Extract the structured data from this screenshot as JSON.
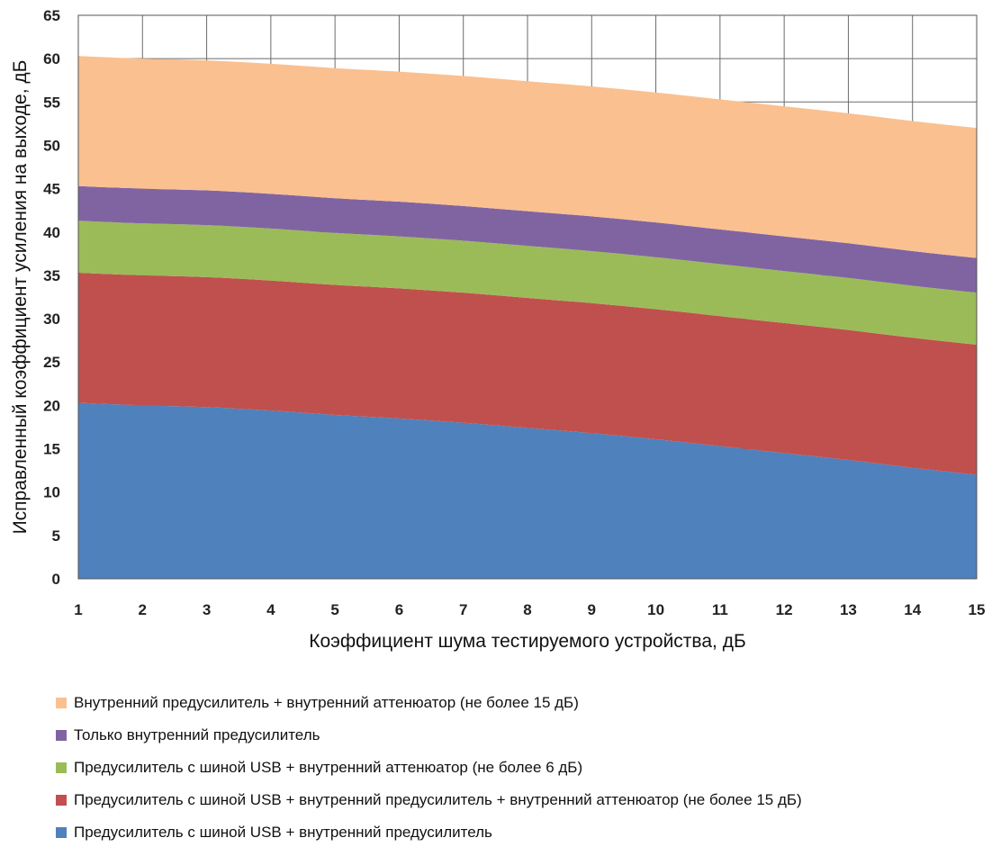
{
  "chart_data": {
    "type": "area",
    "stacked": true,
    "x": [
      1,
      2,
      3,
      4,
      5,
      6,
      7,
      8,
      9,
      10,
      11,
      12,
      13,
      14,
      15
    ],
    "xlabel": "Коэффициент шума тестируемого устройства, дБ",
    "ylabel": "Исправленный коэффициент усиления на выходе, дБ",
    "xlim": [
      1,
      15
    ],
    "ylim": [
      0,
      65
    ],
    "x_ticks": [
      "1",
      "2",
      "3",
      "4",
      "5",
      "6",
      "7",
      "8",
      "9",
      "10",
      "11",
      "12",
      "13",
      "14",
      "15"
    ],
    "y_ticks": [
      "0",
      "5",
      "10",
      "15",
      "20",
      "25",
      "30",
      "35",
      "40",
      "45",
      "50",
      "55",
      "60",
      "65"
    ],
    "grid": true,
    "legend_position": "bottom",
    "series": [
      {
        "name": "Предусилитель с шиной USB + внутренний предусилитель",
        "color": "#4f81bd",
        "values": [
          20.3,
          20.0,
          19.8,
          19.4,
          18.9,
          18.5,
          18.0,
          17.4,
          16.8,
          16.1,
          15.3,
          14.5,
          13.7,
          12.8,
          12.0
        ]
      },
      {
        "name": "Предусилитель с шиной USB + внутренний предусилитель + внутренний аттенюатор (не более 15 дБ)",
        "color": "#c0504d",
        "values": [
          15.0,
          15.0,
          15.0,
          15.0,
          15.0,
          15.0,
          15.0,
          15.0,
          15.0,
          15.0,
          15.0,
          15.0,
          15.0,
          15.0,
          15.0
        ]
      },
      {
        "name": "Предусилитель с шиной USB + внутренний аттенюатор (не более 6 дБ)",
        "color": "#9bbb59",
        "values": [
          6.0,
          6.0,
          6.0,
          6.0,
          6.0,
          6.0,
          6.0,
          6.0,
          6.0,
          6.0,
          6.0,
          6.0,
          6.0,
          6.0,
          6.0
        ]
      },
      {
        "name": "Только внутренний предусилитель",
        "color": "#8064a2",
        "values": [
          4.0,
          4.0,
          4.0,
          4.0,
          4.0,
          4.0,
          4.0,
          4.0,
          4.0,
          4.0,
          4.0,
          4.0,
          4.0,
          4.0,
          4.0
        ]
      },
      {
        "name": "Внутренний предусилитель + внутренний аттенюатор (не более 15 дБ)",
        "color": "#fac090",
        "values": [
          15.0,
          15.0,
          15.0,
          15.0,
          15.0,
          15.0,
          15.0,
          15.0,
          15.0,
          15.0,
          15.0,
          15.0,
          15.0,
          15.0,
          15.0
        ]
      }
    ],
    "legend": [
      "Внутренний предусилитель + внутренний аттенюатор (не более 15 дБ)",
      "Только внутренний предусилитель",
      "Предусилитель с шиной USB + внутренний аттенюатор (не более 6 дБ)",
      "Предусилитель с шиной USB + внутренний предусилитель + внутренний аттенюатор (не более 15 дБ)",
      "Предусилитель с шиной USB + внутренний предусилитель"
    ],
    "legend_colors": [
      "#fac090",
      "#8064a2",
      "#9bbb59",
      "#c0504d",
      "#4f81bd"
    ]
  }
}
